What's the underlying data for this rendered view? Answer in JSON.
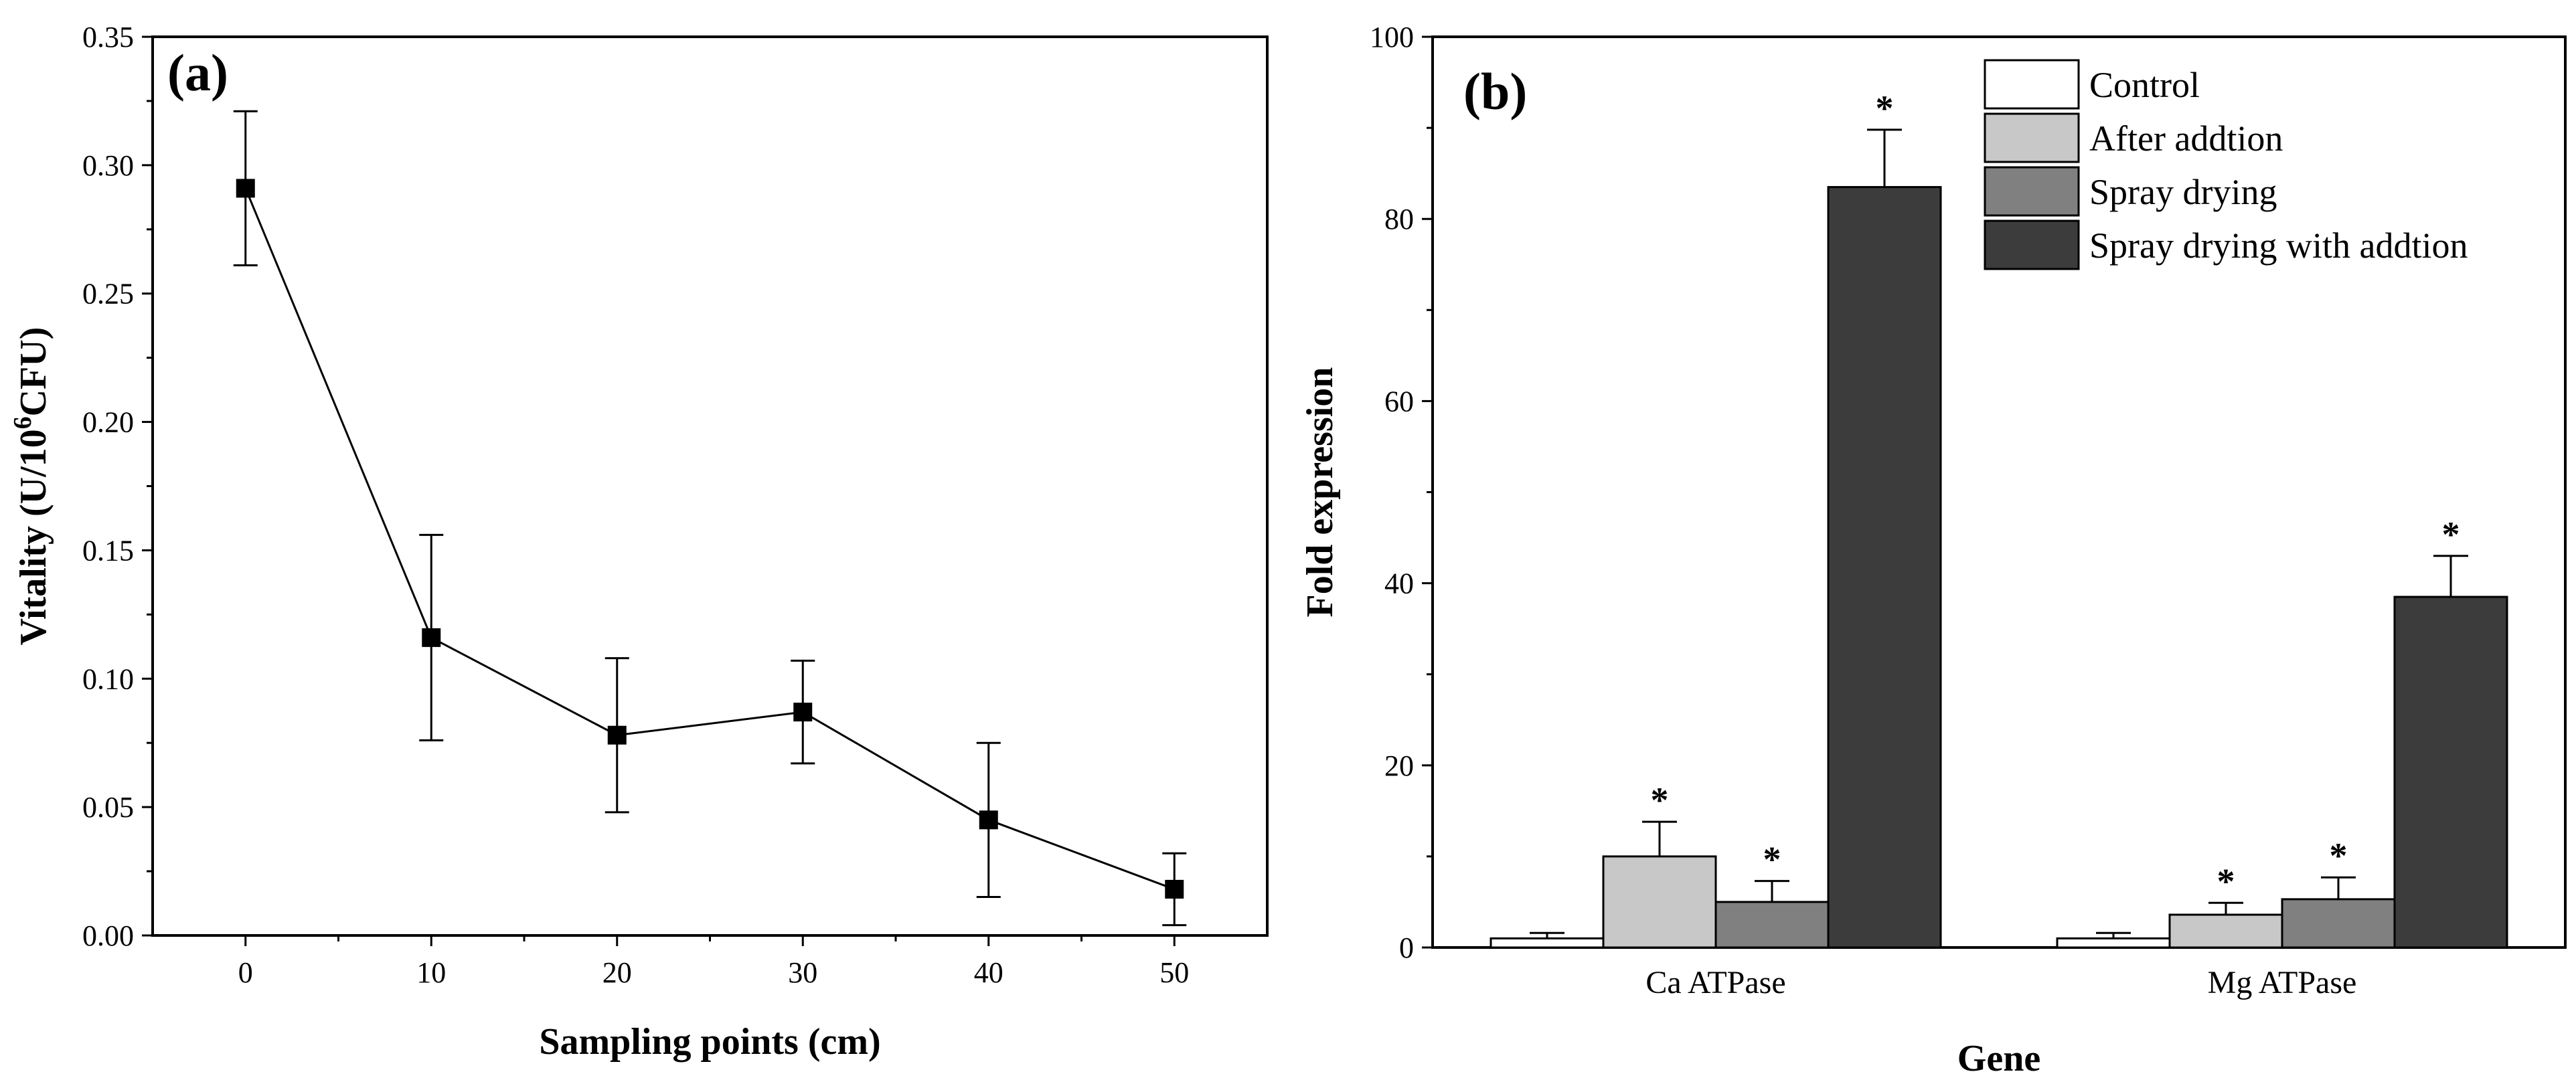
{
  "chart_data": [
    {
      "type": "line",
      "panel_label": "(a)",
      "title": "",
      "xlabel": "Sampling points (cm)",
      "ylabel_main": "Vitality (U/10",
      "ylabel_sup": "6",
      "ylabel_tail": "CFU)",
      "xlim": [
        -5,
        55
      ],
      "ylim": [
        0,
        0.35
      ],
      "x_ticks": [
        "0",
        "10",
        "20",
        "30",
        "40",
        "50"
      ],
      "y_ticks": [
        "0.00",
        "0.05",
        "0.10",
        "0.15",
        "0.20",
        "0.25",
        "0.30",
        "0.35"
      ],
      "grid": false,
      "series": [
        {
          "name": "Vitality",
          "marker": "square",
          "x": [
            0,
            10,
            20,
            30,
            40,
            50
          ],
          "y": [
            0.291,
            0.116,
            0.078,
            0.087,
            0.045,
            0.018
          ],
          "err": [
            0.03,
            0.04,
            0.03,
            0.02,
            0.03,
            0.014
          ]
        }
      ]
    },
    {
      "type": "bar",
      "panel_label": "(b)",
      "title": "",
      "xlabel": "Gene",
      "ylabel": "Fold expression",
      "ylim": [
        0,
        100
      ],
      "y_ticks": [
        "0",
        "20",
        "40",
        "60",
        "80",
        "100"
      ],
      "grid": false,
      "categories": [
        "Ca ATPase",
        "Mg ATPase"
      ],
      "legend_position": "top-right",
      "significance_marker": "*",
      "series": [
        {
          "name": "Control",
          "color": "#ffffff",
          "values": [
            1.0,
            1.0
          ],
          "err": [
            0.6,
            0.6
          ],
          "significant": [
            false,
            false
          ]
        },
        {
          "name": "After addtion",
          "color": "#c8c8c8",
          "values": [
            10.0,
            3.6
          ],
          "err": [
            3.8,
            1.3
          ],
          "significant": [
            true,
            true
          ]
        },
        {
          "name": "Spray drying",
          "color": "#808080",
          "values": [
            5.0,
            5.3
          ],
          "err": [
            2.3,
            2.4
          ],
          "significant": [
            true,
            true
          ]
        },
        {
          "name": "Spray drying with addtion",
          "color": "#3c3c3c",
          "values": [
            83.5,
            38.5
          ],
          "err": [
            6.3,
            4.5
          ],
          "significant": [
            true,
            true
          ]
        }
      ]
    }
  ]
}
